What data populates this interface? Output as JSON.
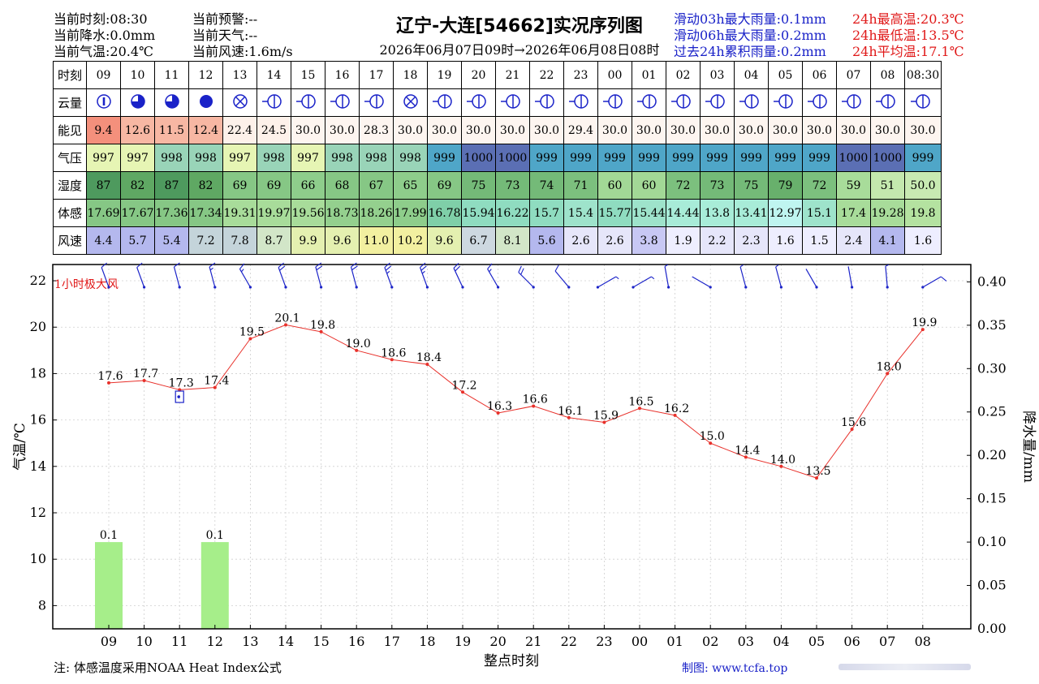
{
  "header": {
    "left_lines": [
      "当前时刻:08:30",
      "当前降水:0.0mm",
      "当前气温:20.4℃"
    ],
    "mid_lines": [
      "当前预警:--",
      "当前天气:--",
      "当前风速:1.6m/s"
    ],
    "title": "辽宁-大连[54662]实况序列图",
    "subtitle": "2026年06月07日09时→2026年06月08日08时",
    "rain_lines": [
      "滑动03h最大雨量:0.1mm",
      "滑动06h最大雨量:0.2mm",
      "过去24h累积雨量:0.2mm"
    ],
    "temp_lines": [
      "24h最高温:20.3℃",
      "24h最低温:13.5℃",
      "24h平均温:17.1℃"
    ]
  },
  "table": {
    "row_labels": [
      "时刻",
      "云量",
      "能见",
      "气压",
      "湿度",
      "体感",
      "风速"
    ],
    "hours": [
      "09",
      "10",
      "11",
      "12",
      "13",
      "14",
      "15",
      "16",
      "17",
      "18",
      "19",
      "20",
      "21",
      "22",
      "23",
      "00",
      "01",
      "02",
      "03",
      "04",
      "05",
      "06",
      "07",
      "08",
      "08:30"
    ],
    "cloud_icons": [
      "cloud-low-icon",
      "cloud-mostly-icon",
      "cloud-mostly-icon",
      "cloud-overcast-icon",
      "cloud-obscured-icon",
      "cloud-clear-wind-icon",
      "cloud-clear-wind-icon",
      "cloud-clear-wind-icon",
      "cloud-clear-wind-icon",
      "cloud-obscured-icon",
      "cloud-clear-wind-icon",
      "cloud-clear-wind-icon",
      "cloud-clear-wind-icon",
      "cloud-clear-wind-icon",
      "cloud-clear-wind-icon",
      "cloud-clear-wind-icon",
      "cloud-clear-wind-icon",
      "cloud-clear-wind-icon",
      "cloud-clear-wind-icon",
      "cloud-clear-wind-icon",
      "cloud-clear-wind-icon",
      "cloud-clear-wind-icon",
      "cloud-clear-wind-icon",
      "cloud-clear-wind-icon",
      "cloud-clear-wind-icon"
    ],
    "visibility": [
      "9.4",
      "12.6",
      "11.5",
      "12.4",
      "22.4",
      "24.5",
      "30.0",
      "30.0",
      "28.3",
      "30.0",
      "30.0",
      "30.0",
      "30.0",
      "30.0",
      "29.4",
      "30.0",
      "30.0",
      "30.0",
      "30.0",
      "30.0",
      "30.0",
      "30.0",
      "30.0",
      "30.0",
      "30.0"
    ],
    "visibility_colors": [
      "#f4907c",
      "#f7b7a3",
      "#f7b7a3",
      "#f7b7a3",
      "#fdf1ea",
      "#fdf1ea",
      "#fdf5f0",
      "#fdf5f0",
      "#fdf5f0",
      "#fdf5f0",
      "#fdf5f0",
      "#fdf5f0",
      "#fdf5f0",
      "#fdf5f0",
      "#fdf5f0",
      "#fdf5f0",
      "#fdf5f0",
      "#fdf5f0",
      "#fdf5f0",
      "#fdf5f0",
      "#fdf5f0",
      "#fdf5f0",
      "#fdf5f0",
      "#fdf5f0",
      "#fdf5f0"
    ],
    "pressure": [
      "997",
      "997",
      "998",
      "998",
      "997",
      "998",
      "997",
      "998",
      "998",
      "998",
      "999",
      "1000",
      "1000",
      "999",
      "999",
      "999",
      "999",
      "999",
      "999",
      "999",
      "999",
      "999",
      "1000",
      "1000",
      "999"
    ],
    "pressure_colors": [
      "#e6f5b4",
      "#e6f5b4",
      "#99d4b8",
      "#99d4b8",
      "#e6f5b4",
      "#99d4b8",
      "#e6f5b4",
      "#99d4b8",
      "#99d4b8",
      "#99d4b8",
      "#4fa6c8",
      "#5b6fb4",
      "#5b6fb4",
      "#4fa6c8",
      "#4fa6c8",
      "#4fa6c8",
      "#4fa6c8",
      "#4fa6c8",
      "#4fa6c8",
      "#4fa6c8",
      "#4fa6c8",
      "#4fa6c8",
      "#5b6fb4",
      "#5b6fb4",
      "#4fa6c8"
    ],
    "humidity": [
      "87",
      "82",
      "87",
      "82",
      "69",
      "69",
      "66",
      "68",
      "67",
      "65",
      "69",
      "75",
      "73",
      "74",
      "71",
      "60",
      "60",
      "72",
      "73",
      "75",
      "79",
      "72",
      "59",
      "51",
      "50.0"
    ],
    "humidity_colors": [
      "#4e9a5e",
      "#5fa863",
      "#4e9a5e",
      "#5fa863",
      "#86c785",
      "#86c785",
      "#8ecd8b",
      "#86c785",
      "#86c785",
      "#8ecd8b",
      "#86c785",
      "#74ba78",
      "#74ba78",
      "#74ba78",
      "#7cc07e",
      "#a2d896",
      "#a2d896",
      "#7cc07e",
      "#74ba78",
      "#74ba78",
      "#68b06c",
      "#7cc07e",
      "#a8dc9a",
      "#c4e8ae",
      "#c8eab2"
    ],
    "feels_like": [
      "17.69",
      "17.67",
      "17.36",
      "17.34",
      "19.31",
      "19.97",
      "19.56",
      "18.73",
      "18.26",
      "17.99",
      "16.78",
      "15.94",
      "16.22",
      "15.7",
      "15.4",
      "15.77",
      "15.44",
      "14.44",
      "13.8",
      "13.41",
      "12.97",
      "15.1",
      "17.4",
      "19.28",
      "19.8"
    ],
    "feels_colors": [
      "#86c785",
      "#86c785",
      "#86c785",
      "#86c785",
      "#a8dc9a",
      "#a8dc9a",
      "#a8dc9a",
      "#94d08e",
      "#94d08e",
      "#8ecd8b",
      "#7fcfa8",
      "#8fdcc0",
      "#8fdcc0",
      "#8fdcc0",
      "#9ee3cb",
      "#8fdcc0",
      "#9ee3cb",
      "#a8ecd8",
      "#a8ecd8",
      "#a8ecd8",
      "#bff5f0",
      "#9ee3cb",
      "#a8dc9a",
      "#a8dc9a",
      "#b4e2a0"
    ],
    "wind": [
      "4.4",
      "5.7",
      "5.4",
      "7.2",
      "7.8",
      "8.7",
      "9.9",
      "9.6",
      "11.0",
      "10.2",
      "9.6",
      "6.7",
      "8.1",
      "5.6",
      "2.6",
      "2.6",
      "3.8",
      "1.9",
      "2.2",
      "2.3",
      "1.6",
      "1.5",
      "2.4",
      "4.1",
      "1.6"
    ],
    "wind_colors": [
      "#b4b8ee",
      "#b4b8ee",
      "#b4b8ee",
      "#c4d4da",
      "#c4d4da",
      "#d2e6c8",
      "#e4f0b0",
      "#e4f0b0",
      "#f2f0a0",
      "#f2f0a0",
      "#e4f0b0",
      "#cdd8e0",
      "#d2e6c8",
      "#b4b8ee",
      "#e6e6fa",
      "#e6e6fa",
      "#c8c8f4",
      "#eeeeff",
      "#e6e6fa",
      "#e6e6fa",
      "#eeeeff",
      "#eeeeff",
      "#e6e6fa",
      "#b4b8ee",
      "#eeeeff"
    ]
  },
  "chart_data": {
    "type": "line",
    "x": [
      "09",
      "10",
      "11",
      "12",
      "13",
      "14",
      "15",
      "16",
      "17",
      "18",
      "19",
      "20",
      "21",
      "22",
      "23",
      "00",
      "01",
      "02",
      "03",
      "04",
      "05",
      "06",
      "07",
      "08"
    ],
    "xlabel": "整点时刻",
    "ylabel": "气温/℃",
    "y2label": "降水量/mm",
    "ylim": [
      7,
      22.7
    ],
    "y2lim": [
      0,
      0.42
    ],
    "y_ticks": [
      "8",
      "10",
      "12",
      "14",
      "16",
      "18",
      "20",
      "22"
    ],
    "y2_ticks": [
      "0.00",
      "0.05",
      "0.10",
      "0.15",
      "0.20",
      "0.25",
      "0.30",
      "0.35",
      "0.40"
    ],
    "grid": true,
    "series": [
      {
        "values": [
          17.6,
          17.7,
          17.3,
          17.4,
          19.5,
          20.1,
          19.8,
          19.0,
          18.6,
          18.4,
          17.2,
          16.3,
          16.6,
          16.1,
          15.9,
          16.5,
          16.2,
          15.0,
          14.4,
          14.0,
          13.5,
          15.6,
          18.0,
          19.9
        ],
        "labels": [
          "17.6",
          "17.7",
          "17.3",
          "17.4",
          "19.5",
          "20.1",
          "19.8",
          "19.0",
          "18.6",
          "18.4",
          "17.2",
          "16.3",
          "16.6",
          "16.1",
          "15.9",
          "16.5",
          "16.2",
          "15.0",
          "14.4",
          "14.0",
          "13.5",
          "15.6",
          "18.0",
          "19.9"
        ],
        "color": "#e8302a"
      },
      {
        "type": "bar",
        "axis": "right",
        "values": [
          0.1,
          0,
          0,
          0.1,
          0,
          0,
          0,
          0,
          0,
          0,
          0,
          0,
          0,
          0,
          0,
          0,
          0,
          0,
          0,
          0,
          0,
          0,
          0,
          0
        ],
        "bar_labels": [
          "0.1",
          "",
          "",
          "0.1",
          "",
          "",
          "",
          "",
          "",
          "",
          "",
          "",
          "",
          "",
          "",
          "",
          "",
          "",
          "",
          "",
          "",
          "",
          "",
          ""
        ],
        "color": "#a6ee8a"
      }
    ],
    "marker_at": {
      "x": "11",
      "y": 17.0,
      "color": "#1a22c8"
    },
    "gust_label": "1小时极大风",
    "wind_dir_deg": [
      340,
      340,
      345,
      345,
      330,
      340,
      345,
      345,
      340,
      340,
      335,
      330,
      315,
      320,
      60,
      60,
      350,
      300,
      345,
      345,
      330,
      350,
      355,
      60
    ],
    "wind_speed_ms": [
      4.4,
      5.7,
      5.4,
      7.2,
      7.8,
      8.7,
      9.9,
      9.6,
      11.0,
      10.2,
      9.6,
      6.7,
      8.1,
      5.6,
      2.6,
      2.6,
      3.8,
      1.9,
      2.2,
      2.3,
      1.6,
      1.5,
      2.4,
      4.1
    ]
  },
  "footer": {
    "note": "注: 体感温度采用NOAA Heat Index公式",
    "credit": "制图: www.tcfa.top"
  },
  "colors": {
    "blue": "#1a22c8",
    "red": "#e01818",
    "line": "#e8302a",
    "bar": "#a6ee8a",
    "barb": "#1a22c8"
  }
}
